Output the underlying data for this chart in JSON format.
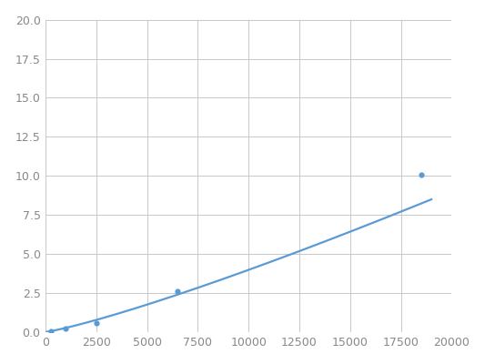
{
  "x": [
    250,
    1000,
    2500,
    6500,
    18500
  ],
  "y": [
    0.07,
    0.2,
    0.55,
    2.6,
    10.1
  ],
  "line_color": "#5b9bd5",
  "marker_color": "#5b9bd5",
  "marker_size": 4.5,
  "xlim": [
    0,
    20000
  ],
  "ylim": [
    0,
    20.0
  ],
  "xticks": [
    0,
    2500,
    5000,
    7500,
    10000,
    12500,
    15000,
    17500,
    20000
  ],
  "yticks": [
    0.0,
    2.5,
    5.0,
    7.5,
    10.0,
    12.5,
    15.0,
    17.5,
    20.0
  ],
  "background_color": "#ffffff",
  "grid_color": "#c8c8c8",
  "tick_fontsize": 9,
  "line_width": 1.6
}
